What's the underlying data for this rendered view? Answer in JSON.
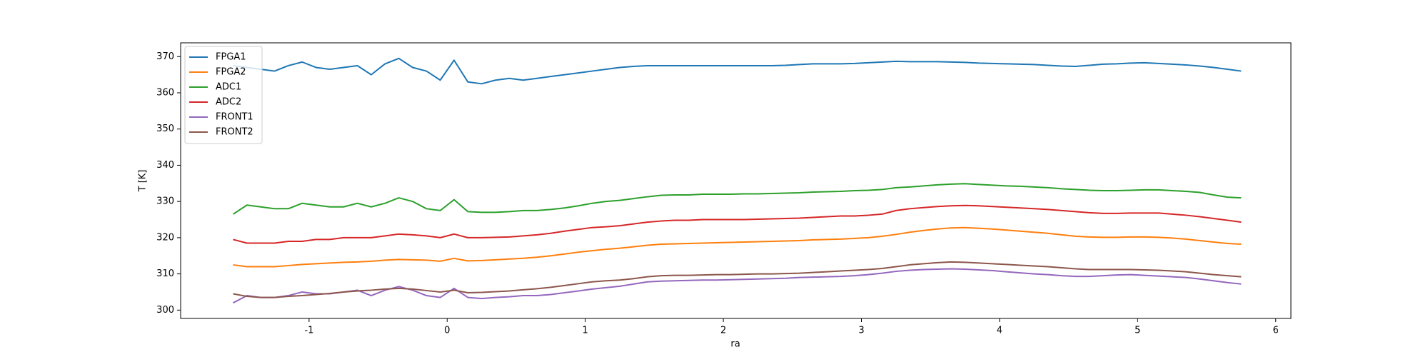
{
  "chart_data": {
    "type": "line",
    "xlabel": "ra",
    "ylabel": "T [K]",
    "xlim": [
      -1.93,
      6.11
    ],
    "ylim": [
      297.7,
      373.8
    ],
    "xticks": [
      -1,
      0,
      1,
      2,
      3,
      4,
      5,
      6
    ],
    "yticks": [
      300,
      310,
      320,
      330,
      340,
      350,
      360,
      370
    ],
    "legend": "upper left",
    "grid": false,
    "x": [
      -1.55,
      -1.45,
      -1.35,
      -1.25,
      -1.15,
      -1.05,
      -0.95,
      -0.85,
      -0.75,
      -0.65,
      -0.55,
      -0.45,
      -0.35,
      -0.25,
      -0.15,
      -0.05,
      0.05,
      0.15,
      0.25,
      0.35,
      0.45,
      0.55,
      0.65,
      0.75,
      0.85,
      0.95,
      1.05,
      1.15,
      1.25,
      1.35,
      1.45,
      1.55,
      1.65,
      1.75,
      1.85,
      1.95,
      2.05,
      2.15,
      2.25,
      2.35,
      2.45,
      2.55,
      2.65,
      2.75,
      2.85,
      2.95,
      3.05,
      3.15,
      3.25,
      3.35,
      3.45,
      3.55,
      3.65,
      3.75,
      3.85,
      3.95,
      4.05,
      4.15,
      4.25,
      4.35,
      4.45,
      4.55,
      4.65,
      4.75,
      4.85,
      4.95,
      5.05,
      5.15,
      5.25,
      5.35,
      5.45,
      5.55,
      5.65,
      5.75
    ],
    "series": [
      {
        "name": "FPGA1",
        "color": "#1f77b4",
        "values": [
          367.5,
          367,
          366.5,
          366,
          367.5,
          368.5,
          367,
          366.5,
          367,
          367.5,
          365,
          368,
          369.5,
          367,
          366,
          363.5,
          369,
          363,
          362.5,
          363.5,
          364,
          363.5,
          364,
          364.5,
          365,
          365.5,
          366,
          366.5,
          367,
          367.3,
          367.5,
          367.5,
          367.5,
          367.5,
          367.5,
          367.5,
          367.5,
          367.5,
          367.5,
          367.5,
          367.6,
          367.8,
          368,
          368,
          368,
          368.1,
          368.3,
          368.5,
          368.7,
          368.6,
          368.6,
          368.6,
          368.5,
          368.4,
          368.2,
          368.1,
          368,
          367.9,
          367.8,
          367.6,
          367.4,
          367.3,
          367.6,
          367.9,
          368,
          368.2,
          368.3,
          368.1,
          367.9,
          367.7,
          367.4,
          367,
          366.5,
          366
        ]
      },
      {
        "name": "FPGA2",
        "color": "#ff7f0e",
        "values": [
          312.5,
          312,
          312,
          312,
          312.3,
          312.6,
          312.8,
          313,
          313.2,
          313.3,
          313.5,
          313.8,
          314,
          313.9,
          313.8,
          313.5,
          314.3,
          313.6,
          313.7,
          313.9,
          314.1,
          314.3,
          314.6,
          315,
          315.5,
          316,
          316.4,
          316.8,
          317.1,
          317.5,
          317.9,
          318.2,
          318.3,
          318.4,
          318.5,
          318.6,
          318.7,
          318.8,
          318.9,
          319,
          319.1,
          319.2,
          319.4,
          319.5,
          319.6,
          319.8,
          320,
          320.4,
          320.9,
          321.5,
          322,
          322.4,
          322.7,
          322.8,
          322.6,
          322.4,
          322.1,
          321.8,
          321.5,
          321.2,
          320.8,
          320.4,
          320.2,
          320.1,
          320.1,
          320.2,
          320.2,
          320.1,
          319.9,
          319.6,
          319.2,
          318.8,
          318.4,
          318.2
        ]
      },
      {
        "name": "ADC1",
        "color": "#2ca02c",
        "values": [
          326.5,
          329,
          328.5,
          328,
          328,
          329.5,
          329,
          328.5,
          328.5,
          329.5,
          328.5,
          329.5,
          331,
          330,
          328,
          327.5,
          330.5,
          327.2,
          327,
          327,
          327.2,
          327.5,
          327.5,
          327.8,
          328.2,
          328.8,
          329.5,
          330,
          330.3,
          330.8,
          331.3,
          331.7,
          331.8,
          331.8,
          332,
          332,
          332,
          332.1,
          332.1,
          332.2,
          332.3,
          332.4,
          332.6,
          332.7,
          332.8,
          333,
          333.1,
          333.3,
          333.8,
          334,
          334.3,
          334.6,
          334.8,
          334.9,
          334.7,
          334.5,
          334.3,
          334.2,
          334,
          333.8,
          333.5,
          333.3,
          333.1,
          333,
          333,
          333.1,
          333.2,
          333.2,
          333,
          332.8,
          332.5,
          331.8,
          331.2,
          331
        ]
      },
      {
        "name": "ADC2",
        "color": "#d62728",
        "values": [
          319.5,
          318.5,
          318.5,
          318.5,
          319,
          319,
          319.5,
          319.5,
          320,
          320,
          320,
          320.5,
          321,
          320.8,
          320.5,
          320,
          321,
          320,
          320,
          320.1,
          320.2,
          320.5,
          320.8,
          321.2,
          321.8,
          322.3,
          322.8,
          323,
          323.3,
          323.8,
          324.3,
          324.6,
          324.8,
          324.8,
          325,
          325,
          325,
          325,
          325.1,
          325.2,
          325.3,
          325.4,
          325.6,
          325.8,
          326,
          326,
          326.2,
          326.5,
          327.5,
          328,
          328.3,
          328.6,
          328.8,
          328.9,
          328.8,
          328.6,
          328.4,
          328.2,
          328,
          327.8,
          327.5,
          327.2,
          326.9,
          326.7,
          326.7,
          326.8,
          326.8,
          326.8,
          326.5,
          326.2,
          325.8,
          325.3,
          324.8,
          324.3
        ]
      },
      {
        "name": "FRONT1",
        "color": "#9467bd",
        "values": [
          302,
          304,
          303.5,
          303.5,
          304,
          305,
          304.5,
          304.5,
          305,
          305.5,
          304,
          305.5,
          306.5,
          305.5,
          304,
          303.5,
          306,
          303.5,
          303.2,
          303.5,
          303.7,
          304,
          304,
          304.3,
          304.8,
          305.3,
          305.8,
          306.2,
          306.6,
          307.2,
          307.8,
          308,
          308.1,
          308.2,
          308.3,
          308.3,
          308.4,
          308.5,
          308.6,
          308.7,
          308.8,
          309,
          309.1,
          309.2,
          309.3,
          309.5,
          309.8,
          310.2,
          310.7,
          311,
          311.2,
          311.3,
          311.4,
          311.3,
          311.1,
          310.9,
          310.6,
          310.3,
          310,
          309.8,
          309.5,
          309.3,
          309.3,
          309.5,
          309.7,
          309.8,
          309.6,
          309.4,
          309.2,
          309,
          308.6,
          308.1,
          307.6,
          307.2
        ]
      },
      {
        "name": "FRONT2",
        "color": "#8c564b",
        "values": [
          304.5,
          303.8,
          303.5,
          303.5,
          303.8,
          304,
          304.3,
          304.6,
          305,
          305.3,
          305.5,
          305.8,
          306,
          305.8,
          305.4,
          305,
          305.5,
          304.8,
          304.9,
          305.1,
          305.3,
          305.6,
          305.9,
          306.3,
          306.8,
          307.3,
          307.8,
          308.1,
          308.3,
          308.7,
          309.2,
          309.5,
          309.6,
          309.6,
          309.7,
          309.8,
          309.8,
          309.9,
          310,
          310,
          310.1,
          310.2,
          310.4,
          310.6,
          310.8,
          311,
          311.2,
          311.5,
          312,
          312.5,
          312.8,
          313.1,
          313.3,
          313.2,
          313,
          312.8,
          312.6,
          312.4,
          312.2,
          312,
          311.7,
          311.4,
          311.2,
          311.2,
          311.2,
          311.2,
          311.1,
          311,
          310.8,
          310.6,
          310.2,
          309.8,
          309.5,
          309.2
        ]
      }
    ]
  }
}
